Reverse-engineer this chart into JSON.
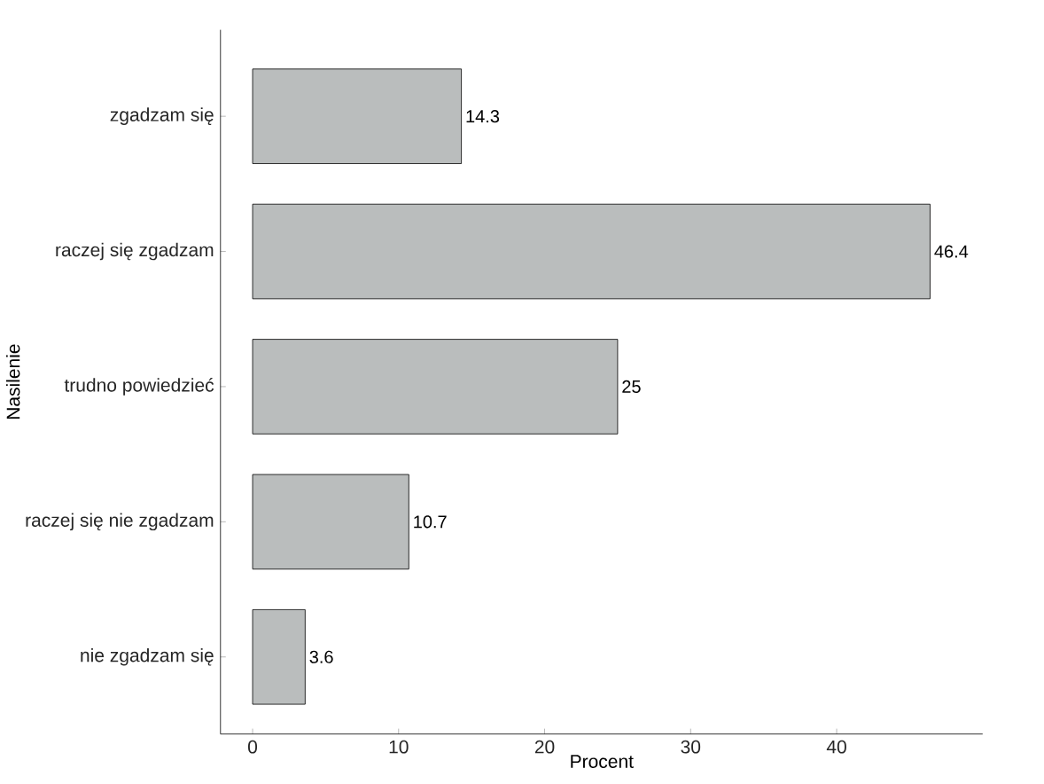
{
  "chart_data": {
    "type": "bar",
    "orientation": "horizontal",
    "xlabel": "Procent",
    "ylabel": "Nasilenie",
    "categories": [
      "zgadzam się",
      "raczej się zgadzam",
      "trudno powiedzieć",
      "raczej się nie zgadzam",
      "nie zgadzam się"
    ],
    "values": [
      14.3,
      46.4,
      25,
      10.7,
      3.6
    ],
    "value_labels": [
      "14.3",
      "46.4",
      "25",
      "10.7",
      "3.6"
    ],
    "color": "#babdbd",
    "xlim": [
      -2.2,
      50
    ],
    "xticks": [
      0,
      10,
      20,
      30,
      40
    ]
  }
}
